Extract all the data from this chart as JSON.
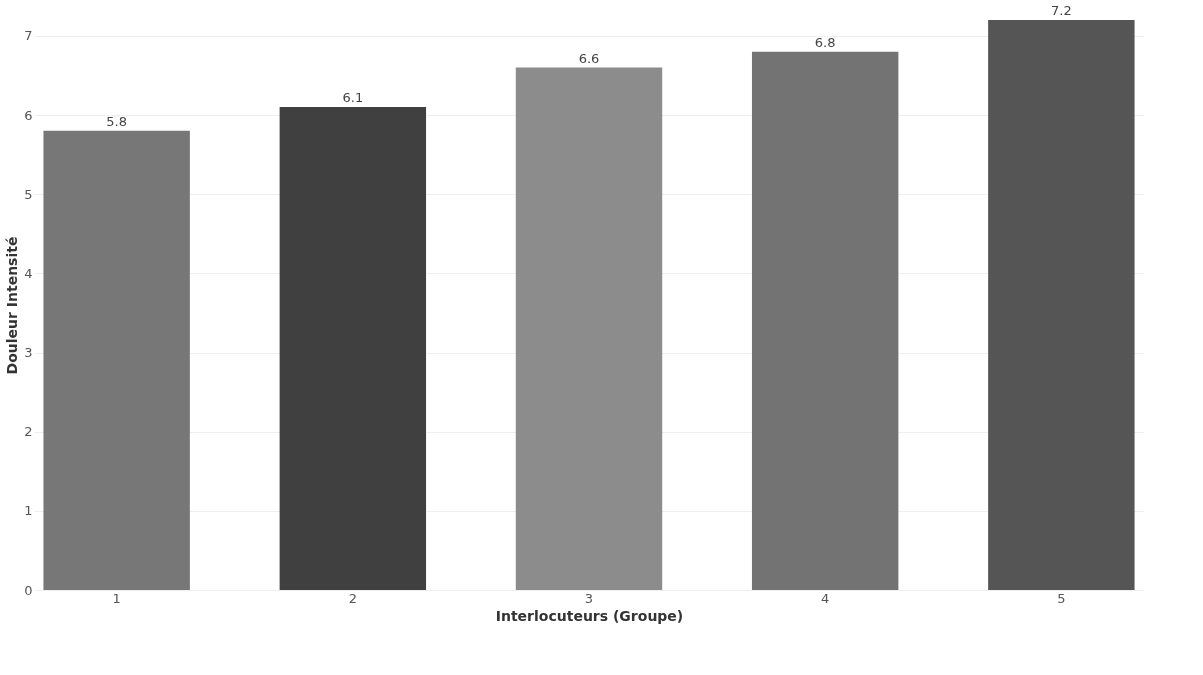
{
  "chart_data": {
    "type": "bar",
    "xlabel": "Interlocuteurs (Groupe)",
    "ylabel": "Douleur Intensité",
    "categories": [
      "1",
      "2",
      "3",
      "4",
      "5"
    ],
    "values": [
      5.8,
      6.1,
      6.6,
      6.8,
      7.2
    ],
    "colors": [
      "#777777",
      "#404040",
      "#8c8c8c",
      "#737373",
      "#555555"
    ],
    "ylim": [
      0,
      7.2
    ],
    "yticks": [
      0,
      1,
      2,
      3,
      4,
      5,
      6,
      7
    ],
    "grid": "y",
    "data_labels": true
  }
}
